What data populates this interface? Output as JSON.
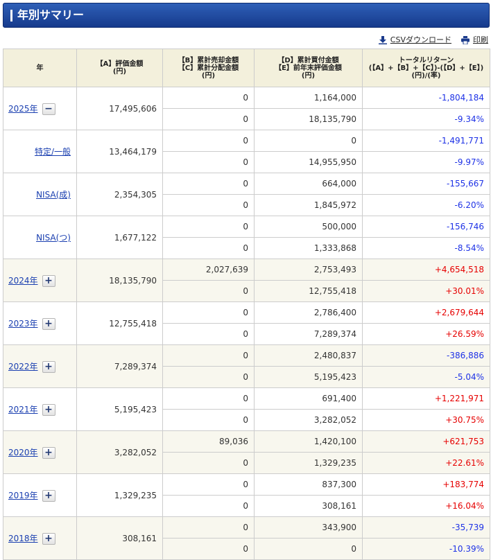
{
  "header": {
    "title": "年別サマリー"
  },
  "tools": {
    "csv_label": "CSVダウンロード",
    "print_label": "印刷"
  },
  "columns": {
    "year": "年",
    "a": [
      "【A】評価金額",
      "(円)"
    ],
    "bc": [
      "【B】累計売却金額",
      "【C】累計分配金額",
      "(円)"
    ],
    "de": [
      "【D】累計買付金額",
      "【E】前年末評価金額",
      "(円)"
    ],
    "total": [
      "トータルリターン",
      "(【A】+【B】+【C】)-(【D】+【E】)",
      "(円)/(率)"
    ]
  },
  "rows": [
    {
      "label": "2025年",
      "type": "year",
      "toggle": "−",
      "alt": false,
      "a": "17,495,606",
      "b": "0",
      "c": "0",
      "d": "1,164,000",
      "e": "18,135,790",
      "tr": "-1,804,184",
      "rate": "-9.34%",
      "sign": "neg"
    },
    {
      "label": "特定/一般",
      "type": "account",
      "alt": false,
      "a": "13,464,179",
      "b": "0",
      "c": "0",
      "d": "0",
      "e": "14,955,950",
      "tr": "-1,491,771",
      "rate": "-9.97%",
      "sign": "neg"
    },
    {
      "label": "NISA(成)",
      "type": "account",
      "alt": false,
      "a": "2,354,305",
      "b": "0",
      "c": "0",
      "d": "664,000",
      "e": "1,845,972",
      "tr": "-155,667",
      "rate": "-6.20%",
      "sign": "neg"
    },
    {
      "label": "NISA(つ)",
      "type": "account",
      "alt": false,
      "a": "1,677,122",
      "b": "0",
      "c": "0",
      "d": "500,000",
      "e": "1,333,868",
      "tr": "-156,746",
      "rate": "-8.54%",
      "sign": "neg"
    },
    {
      "label": "2024年",
      "type": "year",
      "toggle": "+",
      "alt": true,
      "a": "18,135,790",
      "b": "2,027,639",
      "c": "0",
      "d": "2,753,493",
      "e": "12,755,418",
      "tr": "+4,654,518",
      "rate": "+30.01%",
      "sign": "pos"
    },
    {
      "label": "2023年",
      "type": "year",
      "toggle": "+",
      "alt": false,
      "a": "12,755,418",
      "b": "0",
      "c": "0",
      "d": "2,786,400",
      "e": "7,289,374",
      "tr": "+2,679,644",
      "rate": "+26.59%",
      "sign": "pos"
    },
    {
      "label": "2022年",
      "type": "year",
      "toggle": "+",
      "alt": true,
      "a": "7,289,374",
      "b": "0",
      "c": "0",
      "d": "2,480,837",
      "e": "5,195,423",
      "tr": "-386,886",
      "rate": "-5.04%",
      "sign": "neg"
    },
    {
      "label": "2021年",
      "type": "year",
      "toggle": "+",
      "alt": false,
      "a": "5,195,423",
      "b": "0",
      "c": "0",
      "d": "691,400",
      "e": "3,282,052",
      "tr": "+1,221,971",
      "rate": "+30.75%",
      "sign": "pos"
    },
    {
      "label": "2020年",
      "type": "year",
      "toggle": "+",
      "alt": true,
      "a": "3,282,052",
      "b": "89,036",
      "c": "0",
      "d": "1,420,100",
      "e": "1,329,235",
      "tr": "+621,753",
      "rate": "+22.61%",
      "sign": "pos"
    },
    {
      "label": "2019年",
      "type": "year",
      "toggle": "+",
      "alt": false,
      "a": "1,329,235",
      "b": "0",
      "c": "0",
      "d": "837,300",
      "e": "308,161",
      "tr": "+183,774",
      "rate": "+16.04%",
      "sign": "pos"
    },
    {
      "label": "2018年",
      "type": "year",
      "toggle": "+",
      "alt": true,
      "a": "308,161",
      "b": "0",
      "c": "0",
      "d": "343,900",
      "e": "0",
      "tr": "-35,739",
      "rate": "-10.39%",
      "sign": "neg"
    }
  ],
  "icons": {
    "csv": "download-icon",
    "print": "printer-icon",
    "toggle_expanded": "minus-icon",
    "toggle_collapsed": "plus-icon"
  },
  "colors": {
    "header": "#1f4a9e",
    "header_row": "#f3f0dc",
    "alt_row": "#f8f7ee",
    "negative": "#1e32e6",
    "positive": "#e60000",
    "link": "#1a3fb0"
  }
}
